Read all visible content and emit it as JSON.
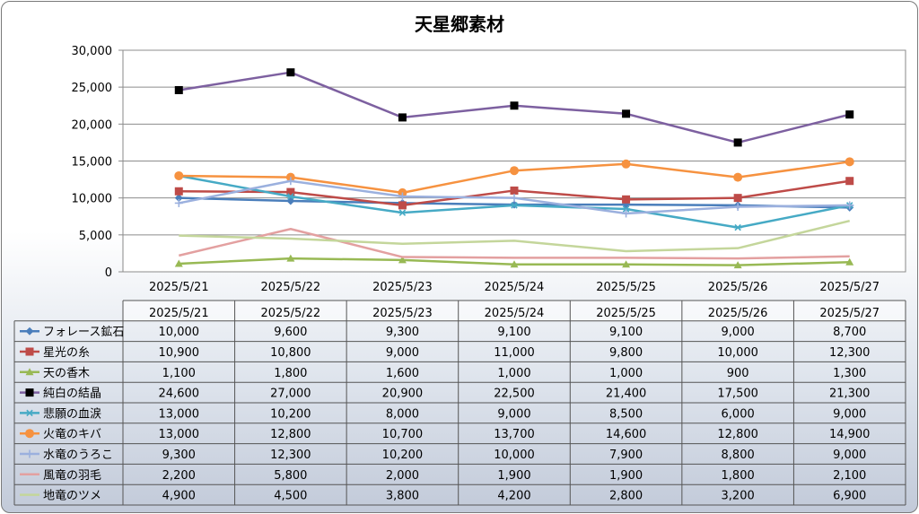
{
  "chart_data": {
    "type": "line",
    "title": "天星郷素材",
    "categories": [
      "2025/5/21",
      "2025/5/22",
      "2025/5/23",
      "2025/5/24",
      "2025/5/25",
      "2025/5/26",
      "2025/5/27"
    ],
    "ylim": [
      0,
      30000
    ],
    "yticks": [
      "0",
      "5,000",
      "10,000",
      "15,000",
      "20,000",
      "25,000",
      "30,000"
    ],
    "ytick_values": [
      0,
      5000,
      10000,
      15000,
      20000,
      25000,
      30000
    ],
    "grid": true,
    "legend_placement": "data-table-left",
    "series": [
      {
        "name": "フォレース鉱石",
        "color": "#4a7ebb",
        "marker": "diamond",
        "values": [
          10000,
          9600,
          9300,
          9100,
          9100,
          9000,
          8700
        ],
        "labels": [
          "10,000",
          "9,600",
          "9,300",
          "9,100",
          "9,100",
          "9,000",
          "8,700"
        ]
      },
      {
        "name": "星光の糸",
        "color": "#be4b48",
        "marker": "square",
        "values": [
          10900,
          10800,
          9000,
          11000,
          9800,
          10000,
          12300
        ],
        "labels": [
          "10,900",
          "10,800",
          "9,000",
          "11,000",
          "9,800",
          "10,000",
          "12,300"
        ]
      },
      {
        "name": "天の香木",
        "color": "#98b954",
        "marker": "triangle",
        "values": [
          1100,
          1800,
          1600,
          1000,
          1000,
          900,
          1300
        ],
        "labels": [
          "1,100",
          "1,800",
          "1,600",
          "1,000",
          "1,000",
          "900",
          "1,300"
        ]
      },
      {
        "name": "純白の結晶",
        "color": "#7d60a0",
        "marker": "blacksquare",
        "values": [
          24600,
          27000,
          20900,
          22500,
          21400,
          17500,
          21300
        ],
        "labels": [
          "24,600",
          "27,000",
          "20,900",
          "22,500",
          "21,400",
          "17,500",
          "21,300"
        ]
      },
      {
        "name": "悲願の血涙",
        "color": "#46aac5",
        "marker": "star",
        "values": [
          13000,
          10200,
          8000,
          9000,
          8500,
          6000,
          9000
        ],
        "labels": [
          "13,000",
          "10,200",
          "8,000",
          "9,000",
          "8,500",
          "6,000",
          "9,000"
        ]
      },
      {
        "name": "火竜のキバ",
        "color": "#f69240",
        "marker": "circle",
        "values": [
          13000,
          12800,
          10700,
          13700,
          14600,
          12800,
          14900
        ],
        "labels": [
          "13,000",
          "12,800",
          "10,700",
          "13,700",
          "14,600",
          "12,800",
          "14,900"
        ]
      },
      {
        "name": "水竜のうろこ",
        "color": "#9bb0de",
        "marker": "plus",
        "values": [
          9300,
          12300,
          10200,
          10000,
          7900,
          8800,
          9000
        ],
        "labels": [
          "9,300",
          "12,300",
          "10,200",
          "10,000",
          "7,900",
          "8,800",
          "9,000"
        ]
      },
      {
        "name": "風竜の羽毛",
        "color": "#e3a0a0",
        "marker": "none",
        "values": [
          2200,
          5800,
          2000,
          1900,
          1900,
          1800,
          2100
        ],
        "labels": [
          "2,200",
          "5,800",
          "2,000",
          "1,900",
          "1,900",
          "1,800",
          "2,100"
        ]
      },
      {
        "name": "地竜のツメ",
        "color": "#c4d69b",
        "marker": "none",
        "values": [
          4900,
          4500,
          3800,
          4200,
          2800,
          3200,
          6900
        ],
        "labels": [
          "4,900",
          "4,500",
          "3,800",
          "4,200",
          "2,800",
          "3,200",
          "6,900"
        ]
      }
    ]
  }
}
